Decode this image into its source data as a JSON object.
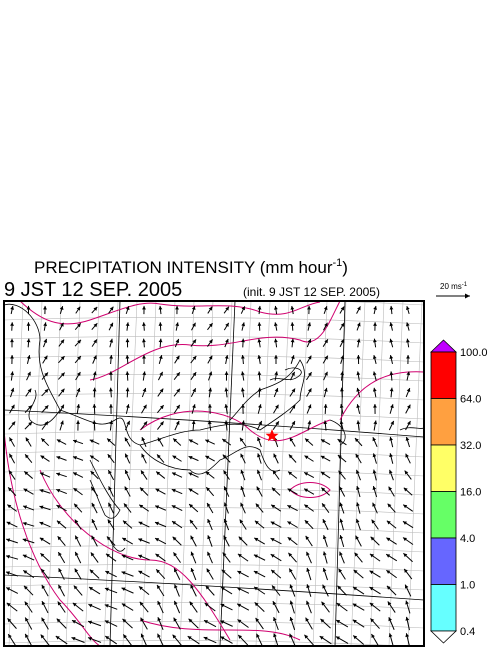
{
  "header": {
    "title": {
      "text": "PRECIPITATION INTENSITY (mm hour",
      "exponent": "-1",
      "close": ")"
    },
    "valid_time": "9 JST 12 SEP. 2005",
    "init_time": "(init. 9 JST 12 SEP. 2005)"
  },
  "vector_scale": {
    "text": "20 ms",
    "exponent": "-1"
  },
  "colorbar": {
    "over_color": "#c000ff",
    "under_color": "#ffffff",
    "bins": [
      {
        "color": "#ff0000"
      },
      {
        "color": "#ffa040"
      },
      {
        "color": "#ffff66"
      },
      {
        "color": "#66ff66"
      },
      {
        "color": "#6666ff"
      },
      {
        "color": "#66ffff"
      }
    ],
    "labels": [
      "100.0",
      "64.0",
      "32.0",
      "16.0",
      "4.0",
      "1.0",
      "0.4"
    ]
  }
}
